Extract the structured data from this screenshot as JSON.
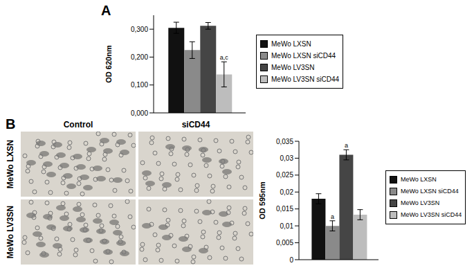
{
  "panel_labels": [
    "A",
    "B"
  ],
  "micrographs": {
    "column_labels": [
      "Control",
      "siCD44"
    ],
    "row_labels": [
      "MeWo LXSN",
      "MeWo LV3SN"
    ]
  },
  "chart_data": [
    {
      "type": "bar",
      "y_label": "OD 620nm",
      "categories": [
        null
      ],
      "ylim": [
        0,
        0.35
      ],
      "yticks": [
        {
          "value": 0,
          "label": "0,000"
        },
        {
          "value": 0.1,
          "label": "0,100"
        },
        {
          "value": 0.2,
          "label": "0,200"
        },
        {
          "value": 0.3,
          "label": "0,300"
        }
      ],
      "legend": "right",
      "series": [
        {
          "name": "MeWo LXSN",
          "color": "#111111",
          "values": [
            0.305
          ],
          "errors": [
            0.02
          ],
          "annotations": [
            null
          ]
        },
        {
          "name": "MeWo LXSN siCD44",
          "color": "#8a8a8a",
          "values": [
            0.225
          ],
          "errors": [
            0.03
          ],
          "annotations": [
            null
          ]
        },
        {
          "name": "MeWo LV3SN",
          "color": "#454545",
          "values": [
            0.312
          ],
          "errors": [
            0.012
          ],
          "annotations": [
            null
          ]
        },
        {
          "name": "MeWo LV3SN siCD44",
          "color": "#bdbdbd",
          "values": [
            0.138
          ],
          "errors": [
            0.045
          ],
          "annotations": [
            "a,c"
          ]
        }
      ]
    },
    {
      "type": "bar",
      "y_label": "OD 595nm",
      "categories": [
        null
      ],
      "ylim": [
        0,
        0.035
      ],
      "yticks": [
        0,
        {
          "value": 0.005,
          "label": "0,005"
        },
        {
          "value": 0.01,
          "label": "0,01"
        },
        {
          "value": 0.015,
          "label": "0,015"
        },
        {
          "value": 0.02,
          "label": "0,02"
        },
        {
          "value": 0.025,
          "label": "0,025"
        },
        {
          "value": 0.03,
          "label": "0,03"
        },
        {
          "value": 0.035,
          "label": "0,035"
        }
      ],
      "legend": "right",
      "series": [
        {
          "name": "MeWo LXSN",
          "color": "#111111",
          "values": [
            0.018
          ],
          "errors": [
            0.0015
          ],
          "annotations": [
            null
          ]
        },
        {
          "name": "MeWo LXSN siCD44",
          "color": "#8a8a8a",
          "values": [
            0.01
          ],
          "errors": [
            0.0015
          ],
          "annotations": [
            "a"
          ]
        },
        {
          "name": "MeWo LV3SN",
          "color": "#454545",
          "values": [
            0.031
          ],
          "errors": [
            0.0015
          ],
          "annotations": [
            "a"
          ]
        },
        {
          "name": "MeWo LV3SN siCD44",
          "color": "#bdbdbd",
          "values": [
            0.0133
          ],
          "errors": [
            0.0015
          ],
          "annotations": [
            null
          ]
        }
      ]
    }
  ]
}
